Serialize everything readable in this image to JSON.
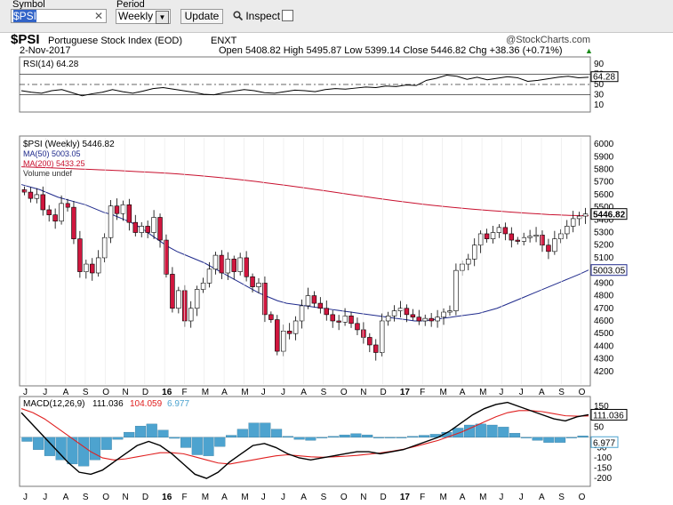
{
  "toolbar": {
    "symbol_label": "Symbol",
    "symbol_value": "$PSI",
    "period_label": "Period",
    "period_value": "Weekly",
    "update_label": "Update",
    "inspect_label": "Inspect"
  },
  "header": {
    "ticker": "$PSI",
    "name": "Portuguese Stock Index (EOD)",
    "exchange": "ENXT",
    "watermark": "@StockCharts.com",
    "date": "2-Nov-2017",
    "ohlc": "Open 5408.82  High 5495.87  Low 5399.14  Close 5446.82  Chg +38.36 (+0.71%)",
    "ohlc_dir": "▲"
  },
  "colors": {
    "up": "#ffffff",
    "down": "#d0163e",
    "ma50": "#1f2a8c",
    "ma200": "#c8102e",
    "histogram": "#4da3cf",
    "signal": "#e02020"
  },
  "chart_data": [
    {
      "type": "line",
      "title": "RSI(14) 64.28",
      "ylim": [
        0,
        100
      ],
      "yticks": [
        90,
        70,
        64.28,
        50,
        30,
        10
      ],
      "reference_lines": [
        70,
        50,
        30
      ],
      "values": [
        38,
        35,
        33,
        38,
        40,
        34,
        28,
        32,
        35,
        40,
        36,
        33,
        37,
        42,
        44,
        41,
        38,
        35,
        31,
        30,
        34,
        37,
        40,
        38,
        34,
        33,
        36,
        39,
        38,
        36,
        40,
        42,
        41,
        43,
        45,
        44,
        47,
        46,
        49,
        48,
        58,
        62,
        68,
        66,
        60,
        64,
        59,
        62,
        65,
        63,
        56,
        58,
        61,
        64,
        66,
        63,
        64
      ]
    },
    {
      "type": "candlestick",
      "title": "$PSI (Weekly) 5446.82",
      "legend": [
        "MA(50) 5003.05",
        "MA(200) 5433.25",
        "Volume undef"
      ],
      "ylim": [
        4100,
        6050
      ],
      "yticks": [
        6000,
        5900,
        5800,
        5700,
        5600,
        5500,
        5400,
        5300,
        5200,
        5100,
        5000,
        4900,
        4800,
        4700,
        4600,
        4500,
        4400,
        4300,
        4200
      ],
      "last_price_label": "5446.82",
      "ma50_label": "5003.05",
      "x_tick_labels": [
        "J",
        "J",
        "A",
        "S",
        "O",
        "N",
        "D",
        "16",
        "F",
        "M",
        "A",
        "M",
        "J",
        "J",
        "A",
        "S",
        "O",
        "N",
        "D",
        "17",
        "F",
        "M",
        "A",
        "M",
        "J",
        "J",
        "A",
        "S",
        "O"
      ],
      "closes": [
        5620,
        5570,
        5600,
        5480,
        5440,
        5390,
        5530,
        5500,
        5250,
        4990,
        5050,
        4980,
        5100,
        5260,
        5510,
        5450,
        5520,
        5380,
        5300,
        5350,
        5300,
        5420,
        5240,
        4970,
        4700,
        4840,
        4600,
        4700,
        4850,
        4900,
        5010,
        5120,
        4980,
        5090,
        4990,
        5100,
        4950,
        4870,
        4900,
        4650,
        4610,
        4360,
        4520,
        4500,
        4600,
        4720,
        4800,
        4740,
        4700,
        4650,
        4600,
        4590,
        4640,
        4580,
        4530,
        4470,
        4410,
        4350,
        4600,
        4640,
        4680,
        4700,
        4650,
        4630,
        4600,
        4620,
        4600,
        4630,
        4670,
        4680,
        5000,
        5050,
        5090,
        5200,
        5290,
        5250,
        5300,
        5340,
        5290,
        5240,
        5230,
        5260,
        5270,
        5280,
        5200,
        5150,
        5250,
        5290,
        5350,
        5410,
        5430,
        5446.82
      ],
      "ma50": [
        5680,
        5660,
        5640,
        5610,
        5580,
        5560,
        5540,
        5520,
        5490,
        5460,
        5440,
        5410,
        5380,
        5340,
        5290,
        5240,
        5190,
        5150,
        5120,
        5090,
        5060,
        5020,
        4980,
        4940,
        4900,
        4860,
        4820,
        4790,
        4760,
        4740,
        4730,
        4720,
        4710,
        4700,
        4690,
        4680,
        4670,
        4660,
        4650,
        4640,
        4630,
        4620,
        4610,
        4600,
        4600,
        4610,
        4620,
        4630,
        4640,
        4650,
        4660,
        4680,
        4700,
        4730,
        4760,
        4790,
        4820,
        4850,
        4880,
        4910,
        4940,
        4970,
        5003.05
      ],
      "ma200": [
        5820,
        5818,
        5815,
        5812,
        5809,
        5806,
        5803,
        5800,
        5797,
        5794,
        5790,
        5786,
        5782,
        5778,
        5774,
        5769,
        5764,
        5758,
        5752,
        5745,
        5738,
        5730,
        5722,
        5713,
        5704,
        5694,
        5684,
        5674,
        5664,
        5653,
        5642,
        5631,
        5620,
        5608,
        5597,
        5586,
        5575,
        5564,
        5554,
        5544,
        5534,
        5525,
        5516,
        5508,
        5500,
        5493,
        5486,
        5480,
        5474,
        5468,
        5462,
        5457,
        5452,
        5447,
        5442,
        5439,
        5436,
        5434,
        5433.25
      ]
    },
    {
      "type": "line",
      "title": "MACD(12,26,9)",
      "macd_label": "111.036",
      "signal_label": "104.059",
      "hist_label": "6.977",
      "ylim": [
        -230,
        190
      ],
      "yticks": [
        150,
        100,
        50,
        -50,
        -100,
        -150,
        -200
      ],
      "macd": [
        120,
        60,
        0,
        -60,
        -120,
        -170,
        -180,
        -160,
        -120,
        -80,
        -40,
        -20,
        -40,
        -80,
        -130,
        -180,
        -200,
        -170,
        -120,
        -80,
        -40,
        -30,
        -50,
        -80,
        -100,
        -110,
        -100,
        -90,
        -80,
        -70,
        -70,
        -80,
        -70,
        -60,
        -40,
        -20,
        0,
        30,
        70,
        110,
        140,
        160,
        170,
        150,
        130,
        110,
        90,
        80,
        100,
        110
      ],
      "signal": [
        140,
        120,
        90,
        50,
        10,
        -30,
        -70,
        -100,
        -110,
        -105,
        -95,
        -85,
        -75,
        -75,
        -80,
        -95,
        -110,
        -125,
        -130,
        -120,
        -110,
        -100,
        -90,
        -85,
        -90,
        -95,
        -97,
        -95,
        -92,
        -88,
        -82,
        -76,
        -68,
        -58,
        -45,
        -30,
        -15,
        5,
        25,
        50,
        75,
        100,
        120,
        130,
        130,
        125,
        115,
        105,
        103,
        104
      ],
      "histogram": [
        -20,
        -60,
        -90,
        -110,
        -130,
        -140,
        -110,
        -60,
        -10,
        25,
        55,
        65,
        35,
        -5,
        -50,
        -85,
        -90,
        -45,
        10,
        40,
        70,
        70,
        40,
        5,
        -10,
        -15,
        -3,
        5,
        12,
        18,
        12,
        -4,
        -2,
        -2,
        5,
        10,
        15,
        25,
        45,
        60,
        65,
        60,
        50,
        20,
        0,
        -15,
        -25,
        -25,
        -3,
        7
      ]
    }
  ]
}
